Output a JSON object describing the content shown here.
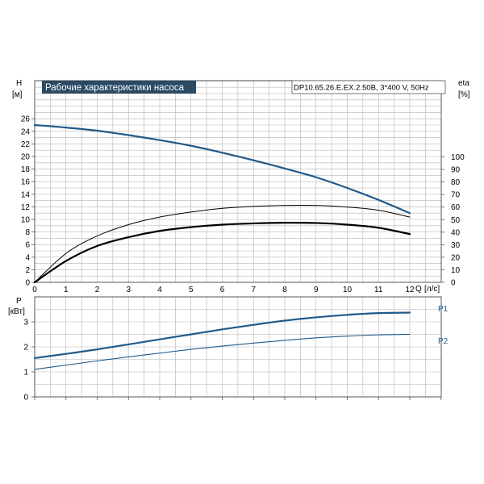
{
  "chart_data": [
    {
      "type": "line",
      "title": "Рабочие характеристики насоса",
      "model": "DP10.65.26.E.EX.2.50B, 3*400 V, 50Hz",
      "x_axis": {
        "label": "Q",
        "unit": "[л/с]",
        "range": [
          0,
          13
        ],
        "ticks": [
          "0",
          "1",
          "2",
          "3",
          "4",
          "5",
          "6",
          "7",
          "8",
          "9",
          "10",
          "11",
          "12"
        ]
      },
      "y_axis_left": {
        "label": "H",
        "unit": "[м]",
        "range": [
          0,
          28
        ],
        "ticks": [
          "0",
          "2",
          "4",
          "6",
          "8",
          "10",
          "12",
          "14",
          "16",
          "18",
          "20",
          "22",
          "24",
          "26"
        ]
      },
      "y_axis_right": {
        "label": "eta",
        "unit": "[%]",
        "range": [
          0,
          110
        ],
        "ticks": [
          "0",
          "10",
          "20",
          "30",
          "40",
          "50",
          "60",
          "70",
          "80",
          "90",
          "100"
        ]
      },
      "grid": true,
      "series": [
        {
          "axis": "left",
          "color": "#1f5a8c",
          "x": [
            0,
            1,
            2,
            3,
            4,
            5,
            6,
            7,
            8,
            9,
            10,
            11,
            12
          ],
          "y": [
            25.0,
            24.6,
            24.1,
            23.4,
            22.6,
            21.7,
            20.6,
            19.4,
            18.1,
            16.7,
            15.0,
            13.1,
            11.0
          ]
        },
        {
          "axis": "right",
          "color": "#000000",
          "x": [
            0,
            1,
            2,
            3,
            4,
            5,
            6,
            7,
            8,
            9,
            10,
            11,
            12
          ],
          "y": [
            0,
            23,
            37,
            46,
            52,
            56,
            59,
            60.5,
            61.3,
            61.3,
            60,
            57.5,
            52
          ]
        },
        {
          "axis": "right",
          "color": "#000000",
          "x": [
            0,
            1,
            2,
            3,
            4,
            5,
            6,
            7,
            8,
            9,
            10,
            11,
            12
          ],
          "y": [
            0,
            17,
            29,
            36,
            41,
            44,
            46,
            47,
            47.5,
            47.3,
            46,
            43.5,
            38.5
          ]
        }
      ]
    },
    {
      "type": "line",
      "x_axis": {
        "range": [
          0,
          13
        ]
      },
      "y_axis_left": {
        "label": "P",
        "unit": "[кВт]",
        "range": [
          0,
          4
        ],
        "ticks": [
          "0",
          "1",
          "2",
          "3"
        ]
      },
      "grid": true,
      "series": [
        {
          "name": "P1",
          "color": "#1f5a8c",
          "x": [
            0,
            1,
            2,
            3,
            4,
            5,
            6,
            7,
            8,
            9,
            10,
            11,
            12
          ],
          "y": [
            1.55,
            1.72,
            1.9,
            2.1,
            2.3,
            2.5,
            2.7,
            2.88,
            3.05,
            3.18,
            3.28,
            3.35,
            3.37
          ]
        },
        {
          "name": "P2",
          "color": "#1f5a8c",
          "x": [
            0,
            1,
            2,
            3,
            4,
            5,
            6,
            7,
            8,
            9,
            10,
            11,
            12
          ],
          "y": [
            1.1,
            1.27,
            1.44,
            1.6,
            1.75,
            1.9,
            2.03,
            2.15,
            2.26,
            2.36,
            2.43,
            2.48,
            2.5
          ]
        }
      ]
    }
  ],
  "colors": {
    "grid": "#b4b4b4",
    "frame": "#555555",
    "title_bg": "#2b4b65",
    "curve_blue": "#1f5a8c"
  }
}
